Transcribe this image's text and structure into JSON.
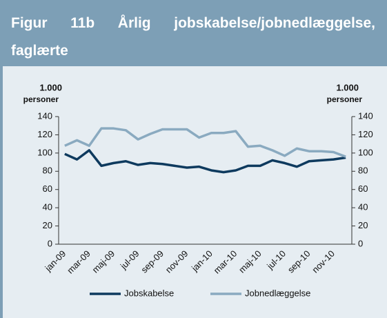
{
  "chart_data": {
    "type": "line",
    "title": "Figur 11b Årlig jobskabelse/jobnedlæggelse, faglærte",
    "ylabel": [
      "1.000",
      "personer"
    ],
    "y2label": [
      "1.000",
      "personer"
    ],
    "categories": [
      "jan-09",
      null,
      "mar-09",
      null,
      "maj-09",
      null,
      "jul-09",
      null,
      "sep-09",
      null,
      "nov-09",
      null,
      "jan-10",
      null,
      "mar-10",
      null,
      "maj-10",
      null,
      "jul-10",
      null,
      "sep-10",
      null,
      "nov-10",
      null
    ],
    "series": [
      {
        "name": "Jobskabelse",
        "color": "#0e3a5e",
        "values": [
          99,
          93,
          103,
          86,
          89,
          91,
          87,
          89,
          88,
          86,
          84,
          85,
          81,
          79,
          81,
          86,
          86,
          92,
          89,
          85,
          91,
          92,
          93,
          95
        ]
      },
      {
        "name": "Jobnedlæggelse",
        "color": "#8aaac0",
        "values": [
          108,
          114,
          108,
          127,
          127,
          125,
          115,
          121,
          126,
          126,
          126,
          117,
          122,
          122,
          124,
          107,
          108,
          103,
          97,
          105,
          102,
          102,
          101,
          96
        ]
      }
    ],
    "ylim": [
      0,
      140
    ],
    "yticks": [
      0,
      20,
      40,
      60,
      80,
      100,
      120,
      140
    ],
    "y2lim": [
      0,
      140
    ],
    "y2ticks": [
      0,
      20,
      40,
      60,
      80,
      100,
      120,
      140
    ],
    "grid": false
  }
}
